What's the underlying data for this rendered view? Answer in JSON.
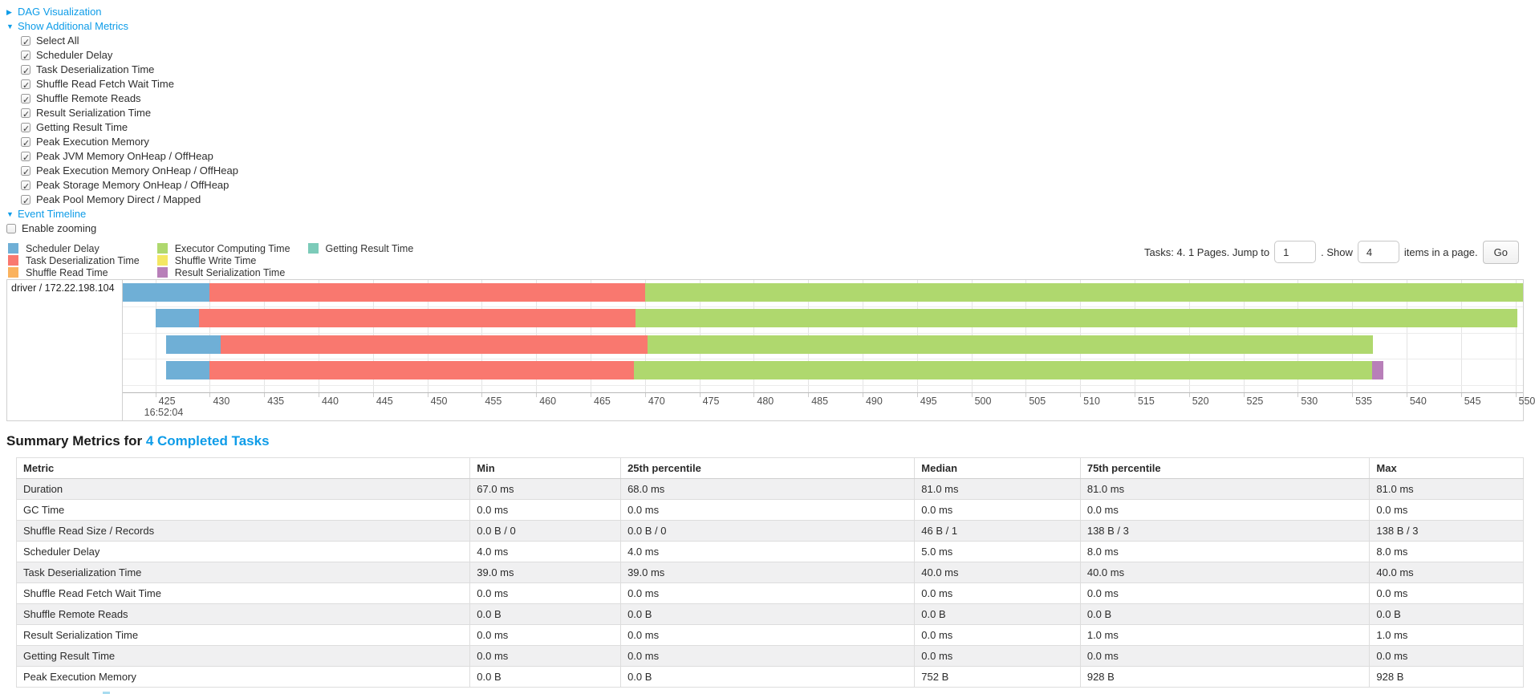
{
  "controls": {
    "dag_label": "DAG Visualization",
    "metrics_toggle_label": "Show Additional Metrics",
    "checkboxes": [
      "Select All",
      "Scheduler Delay",
      "Task Deserialization Time",
      "Shuffle Read Fetch Wait Time",
      "Shuffle Remote Reads",
      "Result Serialization Time",
      "Getting Result Time",
      "Peak Execution Memory",
      "Peak JVM Memory OnHeap / OffHeap",
      "Peak Execution Memory OnHeap / OffHeap",
      "Peak Storage Memory OnHeap / OffHeap",
      "Peak Pool Memory Direct / Mapped"
    ],
    "event_timeline_label": "Event Timeline",
    "enable_zooming_label": "Enable zooming"
  },
  "colors": {
    "scheduler_delay": "#6FAFD6",
    "task_deserialization": "#F9786F",
    "shuffle_read": "#FAB25E",
    "executor_computing": "#AFD86E",
    "shuffle_write": "#F4E763",
    "result_serialization": "#B87FB9",
    "getting_result": "#7CCBB9",
    "link": "#0e9ce8"
  },
  "legend": [
    {
      "label": "Scheduler Delay",
      "color_key": "scheduler_delay"
    },
    {
      "label": "Task Deserialization Time",
      "color_key": "task_deserialization"
    },
    {
      "label": "Shuffle Read Time",
      "color_key": "shuffle_read"
    },
    {
      "label": "Executor Computing Time",
      "color_key": "executor_computing"
    },
    {
      "label": "Shuffle Write Time",
      "color_key": "shuffle_write"
    },
    {
      "label": "Result Serialization Time",
      "color_key": "result_serialization"
    },
    {
      "label": "Getting Result Time",
      "color_key": "getting_result"
    }
  ],
  "pagination": {
    "tasks_text": "Tasks: 4. 1 Pages. Jump to",
    "jump_value": "1",
    "show_text": ". Show",
    "show_value": "4",
    "items_text": "items in a page.",
    "go_label": "Go"
  },
  "chart_data": {
    "type": "timeline",
    "group_label": "driver / 172.22.198.104",
    "x_start": 422.0,
    "x_end": 550.7,
    "x_unit": "ms",
    "time_label": "16:52:04",
    "ticks": [
      425,
      430,
      435,
      440,
      445,
      450,
      455,
      460,
      465,
      470,
      475,
      480,
      485,
      490,
      495,
      500,
      505,
      510,
      515,
      520,
      525,
      530,
      535,
      540,
      545,
      550
    ],
    "rows": [
      {
        "segments": [
          {
            "type": "scheduler_delay",
            "start": 422.0,
            "end": 430.0
          },
          {
            "type": "task_deserialization",
            "start": 430.0,
            "end": 470.0
          },
          {
            "type": "executor_computing",
            "start": 470.0,
            "end": 550.7
          }
        ]
      },
      {
        "segments": [
          {
            "type": "scheduler_delay",
            "start": 425.0,
            "end": 429.0
          },
          {
            "type": "task_deserialization",
            "start": 429.0,
            "end": 469.1
          },
          {
            "type": "executor_computing",
            "start": 469.1,
            "end": 550.2
          }
        ]
      },
      {
        "segments": [
          {
            "type": "scheduler_delay",
            "start": 426.0,
            "end": 431.0
          },
          {
            "type": "task_deserialization",
            "start": 431.0,
            "end": 470.2
          },
          {
            "type": "executor_computing",
            "start": 470.2,
            "end": 536.9
          }
        ]
      },
      {
        "segments": [
          {
            "type": "scheduler_delay",
            "start": 426.0,
            "end": 430.0
          },
          {
            "type": "task_deserialization",
            "start": 430.0,
            "end": 469.0
          },
          {
            "type": "executor_computing",
            "start": 469.0,
            "end": 536.8
          },
          {
            "type": "result_serialization",
            "start": 536.8,
            "end": 537.9
          }
        ]
      }
    ]
  },
  "summary": {
    "title_prefix": "Summary Metrics for ",
    "title_link": "4 Completed Tasks",
    "columns": [
      "Metric",
      "Min",
      "25th percentile",
      "Median",
      "75th percentile",
      "Max"
    ],
    "rows": [
      [
        "Duration",
        "67.0 ms",
        "68.0 ms",
        "81.0 ms",
        "81.0 ms",
        "81.0 ms"
      ],
      [
        "GC Time",
        "0.0 ms",
        "0.0 ms",
        "0.0 ms",
        "0.0 ms",
        "0.0 ms"
      ],
      [
        "Shuffle Read Size / Records",
        "0.0 B / 0",
        "0.0 B / 0",
        "46 B / 1",
        "138 B / 3",
        "138 B / 3"
      ],
      [
        "Scheduler Delay",
        "4.0 ms",
        "4.0 ms",
        "5.0 ms",
        "8.0 ms",
        "8.0 ms"
      ],
      [
        "Task Deserialization Time",
        "39.0 ms",
        "39.0 ms",
        "40.0 ms",
        "40.0 ms",
        "40.0 ms"
      ],
      [
        "Shuffle Read Fetch Wait Time",
        "0.0 ms",
        "0.0 ms",
        "0.0 ms",
        "0.0 ms",
        "0.0 ms"
      ],
      [
        "Shuffle Remote Reads",
        "0.0 B",
        "0.0 B",
        "0.0 B",
        "0.0 B",
        "0.0 B"
      ],
      [
        "Result Serialization Time",
        "0.0 ms",
        "0.0 ms",
        "0.0 ms",
        "1.0 ms",
        "1.0 ms"
      ],
      [
        "Getting Result Time",
        "0.0 ms",
        "0.0 ms",
        "0.0 ms",
        "0.0 ms",
        "0.0 ms"
      ],
      [
        "Peak Execution Memory",
        "0.0 B",
        "0.0 B",
        "752 B",
        "928 B",
        "928 B"
      ]
    ]
  }
}
